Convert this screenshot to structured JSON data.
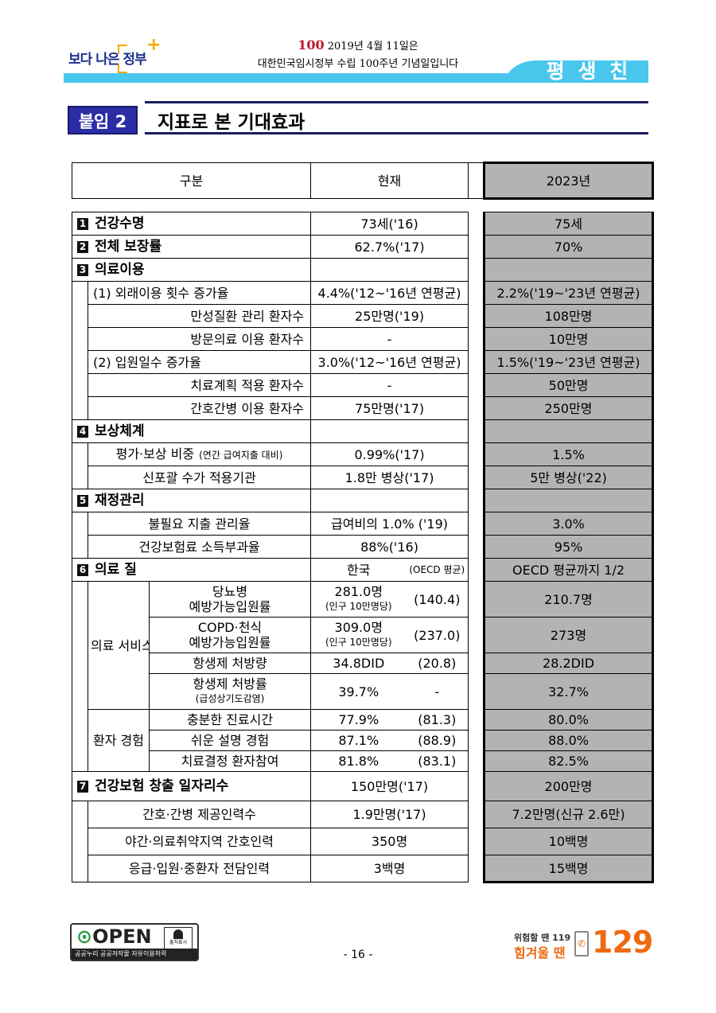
{
  "header": {
    "logo_text": "보다 나은 정부",
    "anniversary_line1": "2019년 4월 11일은",
    "anniversary_line2": "대한민국임시정부 수립 100주년 기념일입니다",
    "anniversary_mark": "100",
    "banner": "평 생 친 구",
    "accent_color": "#49c6ec"
  },
  "title": {
    "badge": "붙임 2",
    "text": "지표로 본 기대효과",
    "badge_color": "#2c2ca6"
  },
  "table": {
    "headers": {
      "category": "구분",
      "current": "현재",
      "target": "2023년"
    },
    "target_column_color": "#b3b3b3",
    "sections": [
      {
        "num": "1",
        "label": "건강수명",
        "current": "73세('16)",
        "target": "75세"
      },
      {
        "num": "2",
        "label": "전체 보장률",
        "current": "62.7%('17)",
        "target": "70%"
      },
      {
        "num": "3",
        "label": "의료이용",
        "current": "",
        "target": "",
        "items": [
          {
            "label": "(1) 외래이용 횟수 증가율",
            "heading": true,
            "current": "4.4%('12~'16년 연평균)",
            "target": "2.2%('19~'23년 연평균)"
          },
          {
            "label": "만성질환 관리 환자수",
            "current": "25만명('19)",
            "target": "108만명"
          },
          {
            "label": "방문의료 이용 환자수",
            "current": "-",
            "target": "10만명"
          },
          {
            "label": "(2) 입원일수 증가율",
            "heading": true,
            "current": "3.0%('12~'16년 연평균)",
            "target": "1.5%('19~'23년 연평균)"
          },
          {
            "label": "치료계획 적용 환자수",
            "current": "-",
            "target": "50만명"
          },
          {
            "label": "간호간병 이용 환자수",
            "current": "75만명('17)",
            "target": "250만명"
          }
        ]
      },
      {
        "num": "4",
        "label": "보상체계",
        "current": "",
        "target": "",
        "items": [
          {
            "label": "평가·보상 비중",
            "label_note": "(연간 급여지출 대비)",
            "current": "0.99%('17)",
            "target": "1.5%"
          },
          {
            "label": "신포괄 수가 적용기관",
            "current": "1.8만 병상('17)",
            "target": "5만 병상('22)"
          }
        ]
      },
      {
        "num": "5",
        "label": "재정관리",
        "current": "",
        "target": "",
        "items": [
          {
            "label": "불필요 지출 관리율",
            "current": "급여비의 1.0% ('19)",
            "target": "3.0%"
          },
          {
            "label": "건강보험료 소득부과율",
            "current": "88%('16)",
            "target": "95%"
          }
        ]
      },
      {
        "num": "6",
        "label": "의료 질",
        "current": "한국",
        "current_note": "(OECD 평균)",
        "target": "OECD 평균까지 1/2",
        "groups": [
          {
            "name": "의료\n서비스",
            "items": [
              {
                "label": "당뇨병\n예방가능입원률",
                "value": "281.0명",
                "value_note": "(인구 10만명당)",
                "oecd": "(140.4)",
                "target": "210.7명"
              },
              {
                "label": "COPD·천식\n예방가능입원률",
                "value": "309.0명",
                "value_note": "(인구 10만명당)",
                "oecd": "(237.0)",
                "target": "273명"
              },
              {
                "label": "항생제 처방량",
                "value": "34.8DID",
                "oecd": "(20.8)",
                "target": "28.2DID"
              },
              {
                "label": "항생제 처방률",
                "label_note": "(급성상기도감염)",
                "value": "39.7%",
                "oecd": "-",
                "target": "32.7%"
              }
            ]
          },
          {
            "name": "환자\n경험",
            "items": [
              {
                "label": "충분한 진료시간",
                "value": "77.9%",
                "oecd": "(81.3)",
                "target": "80.0%"
              },
              {
                "label": "쉬운 설명 경험",
                "value": "87.1%",
                "oecd": "(88.9)",
                "target": "88.0%"
              },
              {
                "label": "치료결정 환자참여",
                "value": "81.8%",
                "oecd": "(83.1)",
                "target": "82.5%"
              }
            ]
          }
        ]
      },
      {
        "num": "7",
        "label": "건강보험 창출 일자리수",
        "current": "150만명('17)",
        "target": "200만명",
        "items": [
          {
            "label": "간호·간병 제공인력수",
            "current": "1.9만명('17)",
            "target": "7.2만명(신규 2.6만)"
          },
          {
            "label": "야간·의료취약지역 간호인력",
            "current": "350명",
            "target": "10백명"
          },
          {
            "label": "응급·입원·중환자 전담인력",
            "current": "3백명",
            "target": "15백명"
          }
        ]
      }
    ]
  },
  "footer": {
    "open_label": "OPEN",
    "open_sub": "공공누리  공공저작물 자유이용허락",
    "attribution": "출처표시",
    "page": "- 16 -",
    "hotline_line1": "위험할 땐 119",
    "hotline_line2": "힘겨울 땐",
    "hotline_number": "129"
  }
}
